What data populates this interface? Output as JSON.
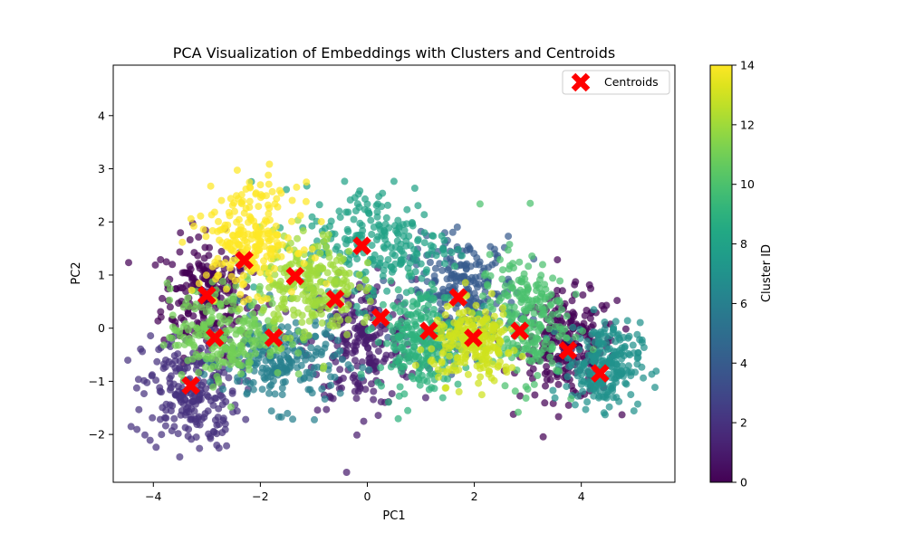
{
  "chart_data": {
    "type": "scatter",
    "title": "PCA Visualization of Embeddings with Clusters and Centroids",
    "xlabel": "PC1",
    "ylabel": "PC2",
    "xlim": [
      -4.75,
      5.75
    ],
    "ylim": [
      -2.9,
      4.95
    ],
    "xticks": [
      -4,
      -2,
      0,
      2,
      4
    ],
    "yticks": [
      -2,
      -1,
      0,
      1,
      2,
      3,
      4
    ],
    "grid": false,
    "legend": {
      "position": "top-right",
      "entries": [
        "Centroids"
      ]
    },
    "colorbar": {
      "label": "Cluster ID",
      "range": [
        0,
        14
      ],
      "ticks": [
        0,
        2,
        4,
        6,
        8,
        10,
        12,
        14
      ],
      "colormap": "viridis"
    },
    "cluster_regions": [
      {
        "cluster": 0,
        "cx": -3.0,
        "cy": 0.6,
        "sx": 0.42,
        "sy": 0.55
      },
      {
        "cluster": 0,
        "cx": 3.75,
        "cy": -0.35,
        "sx": 0.45,
        "sy": 0.5
      },
      {
        "cluster": 1,
        "cx": -0.1,
        "cy": -0.3,
        "sx": 0.5,
        "sy": 0.6
      },
      {
        "cluster": 2,
        "cx": -3.3,
        "cy": -1.2,
        "sx": 0.45,
        "sy": 0.55
      },
      {
        "cluster": 4,
        "cx": 1.8,
        "cy": 0.7,
        "sx": 0.5,
        "sy": 0.5
      },
      {
        "cluster": 6,
        "cx": -1.6,
        "cy": -0.6,
        "sx": 0.55,
        "sy": 0.45
      },
      {
        "cluster": 7,
        "cx": 4.4,
        "cy": -0.7,
        "sx": 0.35,
        "sy": 0.4
      },
      {
        "cluster": 8,
        "cx": 0.2,
        "cy": 1.6,
        "sx": 0.7,
        "sy": 0.55
      },
      {
        "cluster": 9,
        "cx": 1.0,
        "cy": -0.2,
        "sx": 0.4,
        "sy": 0.5
      },
      {
        "cluster": 10,
        "cx": 2.9,
        "cy": 0.2,
        "sx": 0.4,
        "sy": 0.6
      },
      {
        "cluster": 11,
        "cx": -2.6,
        "cy": -0.1,
        "sx": 0.55,
        "sy": 0.45
      },
      {
        "cluster": 12,
        "cx": -1.1,
        "cy": 0.8,
        "sx": 0.45,
        "sy": 0.5
      },
      {
        "cluster": 13,
        "cx": 2.0,
        "cy": -0.3,
        "sx": 0.4,
        "sy": 0.35
      },
      {
        "cluster": 14,
        "cx": -2.2,
        "cy": 1.7,
        "sx": 0.45,
        "sy": 0.5
      }
    ],
    "centroids": [
      {
        "x": -3.0,
        "y": 0.62
      },
      {
        "x": -2.3,
        "y": 1.28
      },
      {
        "x": -1.35,
        "y": 0.98
      },
      {
        "x": -0.1,
        "y": 1.55
      },
      {
        "x": -0.6,
        "y": 0.55
      },
      {
        "x": 0.25,
        "y": 0.2
      },
      {
        "x": 1.7,
        "y": 0.58
      },
      {
        "x": 1.15,
        "y": -0.05
      },
      {
        "x": 1.98,
        "y": -0.18
      },
      {
        "x": 2.85,
        "y": -0.05
      },
      {
        "x": 3.75,
        "y": -0.42
      },
      {
        "x": 4.35,
        "y": -0.85
      },
      {
        "x": -2.85,
        "y": -0.18
      },
      {
        "x": -1.75,
        "y": -0.18
      },
      {
        "x": -3.3,
        "y": -1.08
      }
    ]
  }
}
